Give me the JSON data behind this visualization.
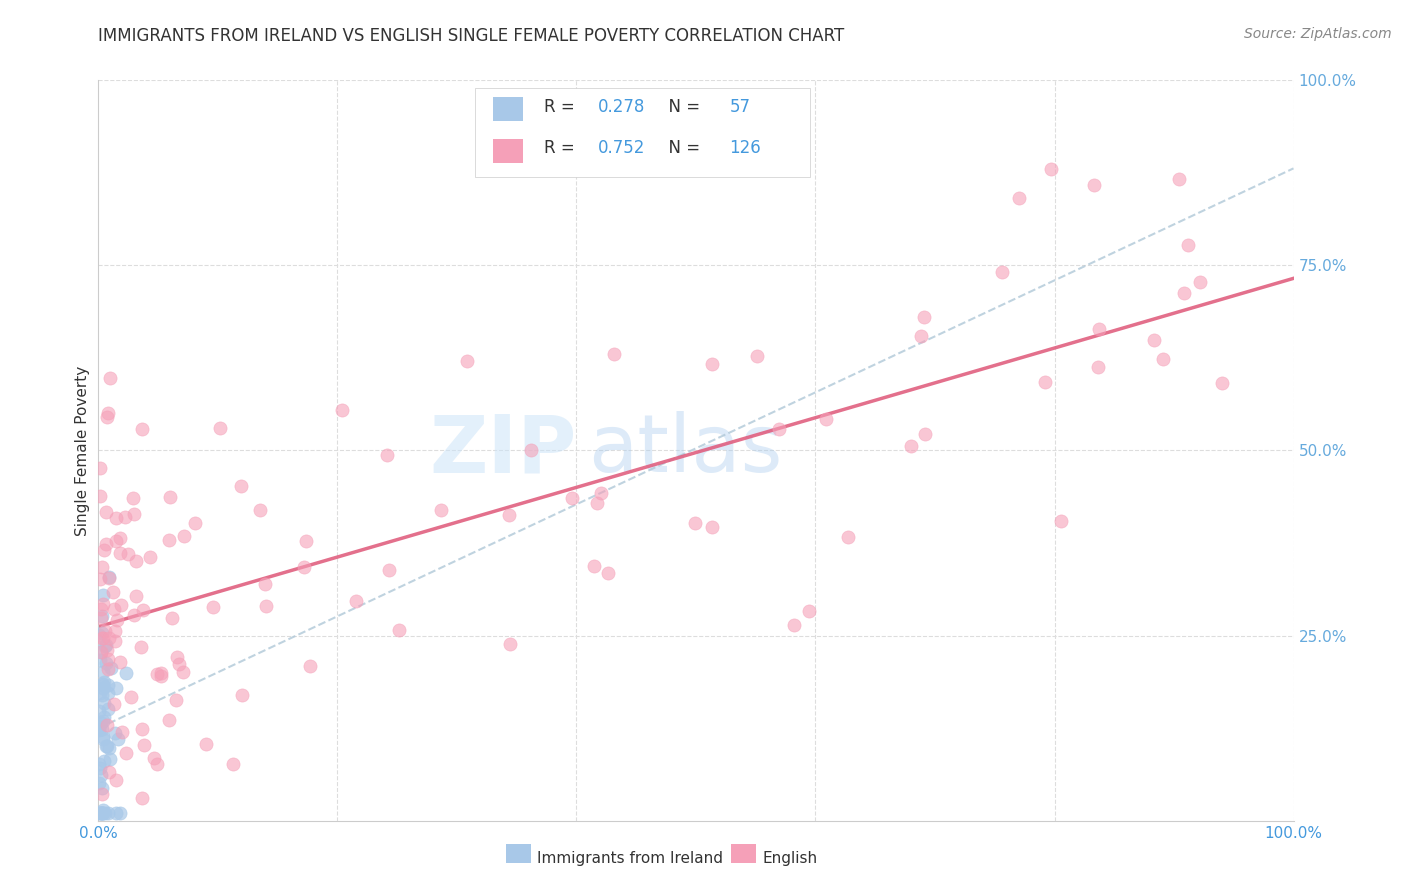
{
  "title": "IMMIGRANTS FROM IRELAND VS ENGLISH SINGLE FEMALE POVERTY CORRELATION CHART",
  "source": "Source: ZipAtlas.com",
  "ylabel": "Single Female Poverty",
  "legend_label1": "Immigrants from Ireland",
  "legend_label2": "English",
  "R1": 0.278,
  "N1": 57,
  "R2": 0.752,
  "N2": 126,
  "color_ireland": "#a8c8e8",
  "color_english": "#f5a0b8",
  "color_ireland_line": "#b0c8d8",
  "color_english_line": "#e06080",
  "color_blue_text": "#4499dd",
  "color_right_axis": "#66aadd",
  "color_grid": "#dddddd",
  "color_title": "#333333",
  "color_source": "#888888"
}
